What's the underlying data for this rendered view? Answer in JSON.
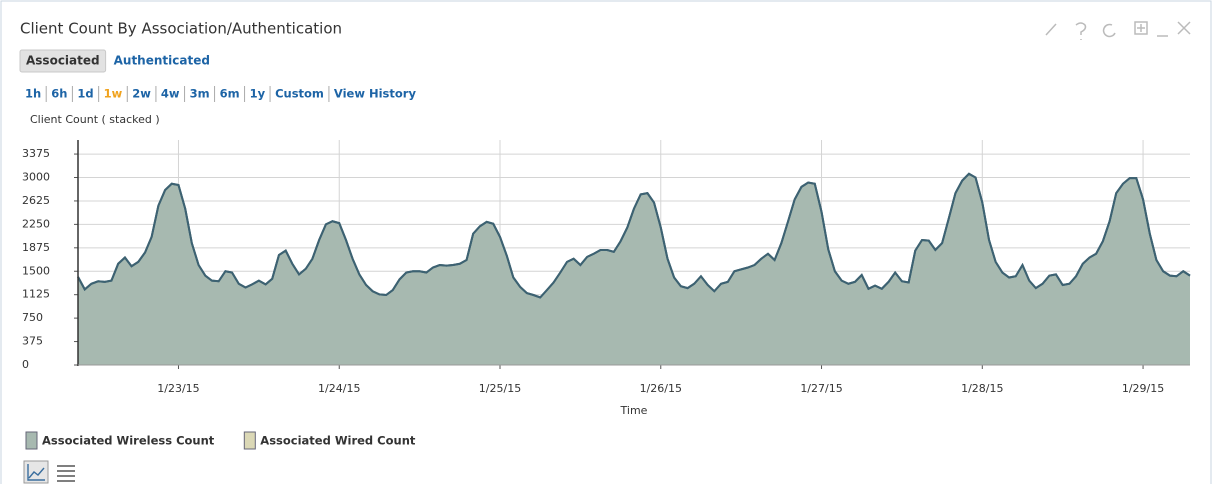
{
  "widget": {
    "title": "Client Count By Association/Authentication",
    "tabs": [
      "Associated",
      "Authenticated"
    ],
    "selected_tab": "Associated",
    "ranges": [
      "1h",
      "6h",
      "1d",
      "1w",
      "2w",
      "4w",
      "3m",
      "6m",
      "1y",
      "Custom",
      "View History"
    ],
    "selected_range": "1w"
  },
  "chart_data": {
    "type": "stacked_area",
    "ylabel": "Client Count ( stacked )",
    "xlabel": "Time",
    "line_color": "#3d6272",
    "grid": true,
    "stacked": true,
    "ylim": [
      0,
      3600
    ],
    "yticks": [
      0,
      375,
      750,
      1125,
      1500,
      1875,
      2250,
      2625,
      3000,
      3375
    ],
    "xlim": [
      22.375,
      29.292
    ],
    "xticks": [
      {
        "value": 23,
        "label": "1/23/15"
      },
      {
        "value": 24,
        "label": "1/24/15"
      },
      {
        "value": 25,
        "label": "1/25/15"
      },
      {
        "value": 26,
        "label": "1/26/15"
      },
      {
        "value": 27,
        "label": "1/27/15"
      },
      {
        "value": 28,
        "label": "1/28/15"
      },
      {
        "value": 29,
        "label": "1/29/15"
      }
    ],
    "x": [
      22.375,
      22.417,
      22.458,
      22.5,
      22.542,
      22.583,
      22.625,
      22.667,
      22.708,
      22.75,
      22.792,
      22.833,
      22.875,
      22.917,
      22.958,
      23.0,
      23.042,
      23.083,
      23.125,
      23.167,
      23.208,
      23.25,
      23.292,
      23.333,
      23.375,
      23.417,
      23.458,
      23.5,
      23.542,
      23.583,
      23.625,
      23.667,
      23.708,
      23.75,
      23.792,
      23.833,
      23.875,
      23.917,
      23.958,
      24.0,
      24.042,
      24.083,
      24.125,
      24.167,
      24.208,
      24.25,
      24.292,
      24.333,
      24.375,
      24.417,
      24.458,
      24.5,
      24.542,
      24.583,
      24.625,
      24.667,
      24.708,
      24.75,
      24.792,
      24.833,
      24.875,
      24.917,
      24.958,
      25.0,
      25.042,
      25.083,
      25.125,
      25.167,
      25.208,
      25.25,
      25.292,
      25.333,
      25.375,
      25.417,
      25.458,
      25.5,
      25.542,
      25.583,
      25.625,
      25.667,
      25.708,
      25.75,
      25.792,
      25.833,
      25.875,
      25.917,
      25.958,
      26.0,
      26.042,
      26.083,
      26.125,
      26.167,
      26.208,
      26.25,
      26.292,
      26.333,
      26.375,
      26.417,
      26.458,
      26.5,
      26.542,
      26.583,
      26.625,
      26.667,
      26.708,
      26.75,
      26.792,
      26.833,
      26.875,
      26.917,
      26.958,
      27.0,
      27.042,
      27.083,
      27.125,
      27.167,
      27.208,
      27.25,
      27.292,
      27.333,
      27.375,
      27.417,
      27.458,
      27.5,
      27.542,
      27.583,
      27.625,
      27.667,
      27.708,
      27.75,
      27.792,
      27.833,
      27.875,
      27.917,
      27.958,
      28.0,
      28.042,
      28.083,
      28.125,
      28.167,
      28.208,
      28.25,
      28.292,
      28.333,
      28.375,
      28.417,
      28.458,
      28.5,
      28.542,
      28.583,
      28.625,
      28.667,
      28.708,
      28.75,
      28.792,
      28.833,
      28.875,
      28.917,
      28.958,
      29.0,
      29.042,
      29.083,
      29.125,
      29.167,
      29.208,
      29.25,
      29.292
    ],
    "series": [
      {
        "name": "Associated Wireless Count",
        "color": "#a7b9b0",
        "values": [
          1410,
          1210,
          1300,
          1340,
          1330,
          1350,
          1620,
          1720,
          1580,
          1650,
          1800,
          2050,
          2550,
          2800,
          2900,
          2880,
          2500,
          1950,
          1600,
          1430,
          1350,
          1340,
          1500,
          1480,
          1300,
          1240,
          1290,
          1350,
          1290,
          1380,
          1760,
          1830,
          1620,
          1450,
          1540,
          1700,
          2000,
          2250,
          2300,
          2270,
          2000,
          1700,
          1450,
          1280,
          1180,
          1130,
          1120,
          1200,
          1370,
          1480,
          1500,
          1500,
          1480,
          1560,
          1600,
          1590,
          1600,
          1620,
          1680,
          2100,
          2220,
          2290,
          2260,
          2050,
          1750,
          1400,
          1250,
          1150,
          1120,
          1080,
          1200,
          1320,
          1480,
          1650,
          1700,
          1600,
          1730,
          1780,
          1840,
          1840,
          1810,
          1980,
          2200,
          2500,
          2730,
          2750,
          2600,
          2200,
          1700,
          1400,
          1260,
          1230,
          1300,
          1420,
          1280,
          1180,
          1300,
          1330,
          1500,
          1530,
          1560,
          1600,
          1700,
          1780,
          1680,
          1950,
          2300,
          2650,
          2850,
          2920,
          2900,
          2450,
          1850,
          1500,
          1350,
          1300,
          1330,
          1440,
          1220,
          1270,
          1220,
          1330,
          1480,
          1340,
          1320,
          1830,
          2000,
          1990,
          1840,
          1950,
          2350,
          2750,
          2950,
          3060,
          3000,
          2600,
          2000,
          1650,
          1480,
          1400,
          1420,
          1600,
          1350,
          1230,
          1300,
          1430,
          1450,
          1280,
          1300,
          1420,
          1620,
          1720,
          1780,
          1980,
          2300,
          2750,
          2900,
          2990,
          2990,
          2650,
          2100,
          1680,
          1500,
          1430,
          1420,
          1500,
          1430
        ]
      },
      {
        "name": "Associated Wired Count",
        "color": "#dbd8b6",
        "values": [
          0,
          0,
          0,
          0,
          0,
          0,
          0,
          0,
          0,
          0,
          0,
          0,
          0,
          0,
          0,
          0,
          0,
          0,
          0,
          0,
          0,
          0,
          0,
          0,
          0,
          0,
          0,
          0,
          0,
          0,
          0,
          0,
          0,
          0,
          0,
          0,
          0,
          0,
          0,
          0,
          0,
          0,
          0,
          0,
          0,
          0,
          0,
          0,
          0,
          0,
          0,
          0,
          0,
          0,
          0,
          0,
          0,
          0,
          0,
          0,
          0,
          0,
          0,
          0,
          0,
          0,
          0,
          0,
          0,
          0,
          0,
          0,
          0,
          0,
          0,
          0,
          0,
          0,
          0,
          0,
          0,
          0,
          0,
          0,
          0,
          0,
          0,
          0,
          0,
          0,
          0,
          0,
          0,
          0,
          0,
          0,
          0,
          0,
          0,
          0,
          0,
          0,
          0,
          0,
          0,
          0,
          0,
          0,
          0,
          0,
          0,
          0,
          0,
          0,
          0,
          0,
          0,
          0,
          0,
          0,
          0,
          0,
          0,
          0,
          0,
          0,
          0,
          0,
          0,
          0,
          0,
          0,
          0,
          0,
          0,
          0,
          0,
          0,
          0,
          0,
          0,
          0,
          0,
          0,
          0,
          0,
          0,
          0,
          0,
          0,
          0,
          0,
          0,
          0,
          0,
          0,
          0,
          0,
          0,
          0,
          0,
          0,
          0,
          0,
          0,
          0,
          0
        ]
      }
    ]
  }
}
